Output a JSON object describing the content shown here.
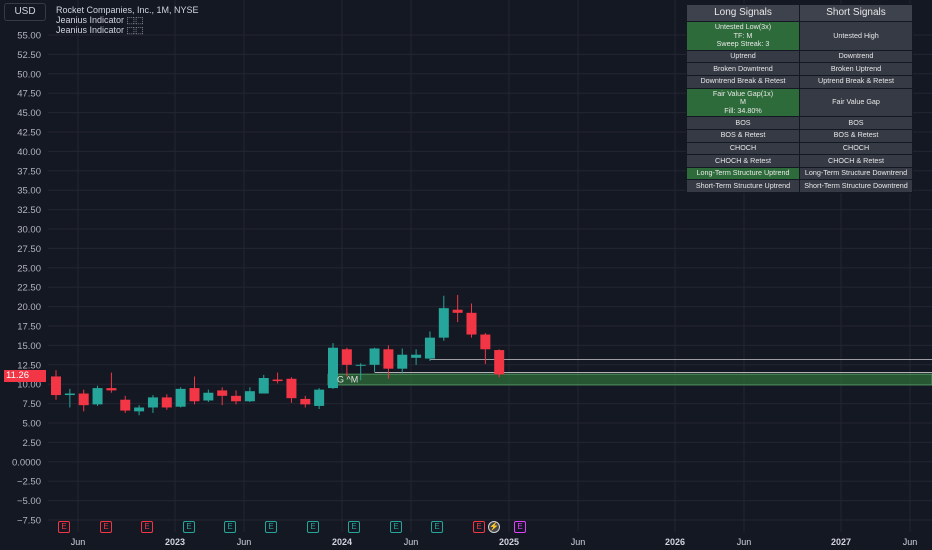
{
  "header": {
    "currency": "USD",
    "symbol_title": "Rocket Companies, Inc., 1M, NYSE",
    "indicators": [
      "Jeanius Indicator ⬚⬚",
      "Jeanius Indicator ⬚⬚"
    ],
    "last_price": "11.26"
  },
  "signals": {
    "long_header": "Long Signals",
    "short_header": "Short Signals",
    "rows": [
      {
        "long": [
          "Untested Low(3x)",
          "TF: M",
          "Sweep Streak: 3"
        ],
        "long_active": true,
        "short": [
          "Untested High"
        ],
        "short_active": false
      },
      {
        "long": [
          "Uptrend"
        ],
        "long_active": false,
        "short": [
          "Downtrend"
        ],
        "short_active": false
      },
      {
        "long": [
          "Broken Downtrend"
        ],
        "long_active": false,
        "short": [
          "Broken Uptrend"
        ],
        "short_active": false
      },
      {
        "long": [
          "Downtrend Break & Retest"
        ],
        "long_active": false,
        "short": [
          "Uptrend Break & Retest"
        ],
        "short_active": false
      },
      {
        "long": [
          "Fair Value Gap(1x)",
          "M",
          "Fill: 34.80%"
        ],
        "long_active": true,
        "short": [
          "Fair Value Gap"
        ],
        "short_active": false
      },
      {
        "long": [
          "BOS"
        ],
        "long_active": false,
        "short": [
          "BOS"
        ],
        "short_active": false
      },
      {
        "long": [
          "BOS & Retest"
        ],
        "long_active": false,
        "short": [
          "BOS & Retest"
        ],
        "short_active": false
      },
      {
        "long": [
          "CHOCH"
        ],
        "long_active": false,
        "short": [
          "CHOCH"
        ],
        "short_active": false
      },
      {
        "long": [
          "CHOCH & Retest"
        ],
        "long_active": false,
        "short": [
          "CHOCH & Retest"
        ],
        "short_active": false
      },
      {
        "long": [
          "Long-Term Structure Uptrend"
        ],
        "long_active": true,
        "short": [
          "Long-Term Structure Downtrend"
        ],
        "short_active": false
      },
      {
        "long": [
          "Short-Term Structure Uptrend"
        ],
        "long_active": false,
        "short": [
          "Short-Term Structure Downtrend"
        ],
        "short_active": false
      }
    ]
  },
  "colors": {
    "up": "#26a69a",
    "down": "#f23645",
    "bg": "#141823",
    "grid": "#232632",
    "zone": "#2e6b3a"
  },
  "chart_data": {
    "type": "candlestick",
    "title": "Rocket Companies, Inc., 1M, NYSE",
    "ylim": [
      -7.5,
      57.5
    ],
    "y_ticks": [
      "55.00",
      "52.50",
      "50.00",
      "47.50",
      "45.00",
      "42.50",
      "40.00",
      "37.50",
      "35.00",
      "32.50",
      "30.00",
      "27.50",
      "25.00",
      "22.50",
      "20.00",
      "17.50",
      "15.00",
      "12.50",
      "10.00",
      "7.50",
      "5.00",
      "2.50",
      "0.0000",
      "−2.50",
      "−5.00",
      "−7.50"
    ],
    "x_ticks": [
      "Jun",
      "2023",
      "Jun",
      "2024",
      "Jun",
      "2025",
      "Jun",
      "2026",
      "Jun",
      "2027",
      "Jun"
    ],
    "x_labels_bold": [
      "2023",
      "2024",
      "2025",
      "2026",
      "2027"
    ],
    "candles": [
      {
        "o": 11.0,
        "h": 11.8,
        "l": 8.0,
        "c": 8.6
      },
      {
        "o": 8.6,
        "h": 9.4,
        "l": 7.0,
        "c": 8.8
      },
      {
        "o": 8.8,
        "h": 9.3,
        "l": 6.5,
        "c": 7.3
      },
      {
        "o": 7.4,
        "h": 9.8,
        "l": 7.2,
        "c": 9.5
      },
      {
        "o": 9.5,
        "h": 11.5,
        "l": 8.9,
        "c": 9.2
      },
      {
        "o": 8.0,
        "h": 8.5,
        "l": 6.3,
        "c": 6.6
      },
      {
        "o": 6.5,
        "h": 7.3,
        "l": 6.0,
        "c": 7.0
      },
      {
        "o": 7.0,
        "h": 8.6,
        "l": 6.3,
        "c": 8.3
      },
      {
        "o": 8.3,
        "h": 8.7,
        "l": 6.7,
        "c": 7.0
      },
      {
        "o": 7.1,
        "h": 9.6,
        "l": 7.0,
        "c": 9.4
      },
      {
        "o": 9.5,
        "h": 11.0,
        "l": 7.4,
        "c": 7.8
      },
      {
        "o": 7.9,
        "h": 9.3,
        "l": 7.7,
        "c": 8.9
      },
      {
        "o": 9.2,
        "h": 9.6,
        "l": 7.3,
        "c": 8.5
      },
      {
        "o": 8.5,
        "h": 9.2,
        "l": 7.4,
        "c": 7.8
      },
      {
        "o": 7.8,
        "h": 9.6,
        "l": 7.7,
        "c": 9.1
      },
      {
        "o": 8.8,
        "h": 11.2,
        "l": 8.8,
        "c": 10.8
      },
      {
        "o": 10.6,
        "h": 11.5,
        "l": 10.1,
        "c": 10.4
      },
      {
        "o": 10.7,
        "h": 10.9,
        "l": 7.6,
        "c": 8.2
      },
      {
        "o": 8.1,
        "h": 8.5,
        "l": 7.0,
        "c": 7.4
      },
      {
        "o": 7.2,
        "h": 9.5,
        "l": 6.8,
        "c": 9.3
      },
      {
        "o": 9.5,
        "h": 15.3,
        "l": 9.4,
        "c": 14.7
      },
      {
        "o": 14.5,
        "h": 14.7,
        "l": 11.0,
        "c": 12.5
      },
      {
        "o": 12.5,
        "h": 12.7,
        "l": 10.5,
        "c": 12.5
      },
      {
        "o": 12.5,
        "h": 14.7,
        "l": 11.6,
        "c": 14.6
      },
      {
        "o": 14.5,
        "h": 15.0,
        "l": 10.7,
        "c": 12.0
      },
      {
        "o": 12.0,
        "h": 14.6,
        "l": 11.4,
        "c": 13.8
      },
      {
        "o": 13.4,
        "h": 14.5,
        "l": 12.5,
        "c": 13.8
      },
      {
        "o": 13.3,
        "h": 16.8,
        "l": 13.0,
        "c": 16.0
      },
      {
        "o": 16.0,
        "h": 21.4,
        "l": 15.6,
        "c": 19.8
      },
      {
        "o": 19.6,
        "h": 21.5,
        "l": 18.0,
        "c": 19.2
      },
      {
        "o": 19.2,
        "h": 20.4,
        "l": 16.0,
        "c": 16.4
      },
      {
        "o": 16.4,
        "h": 16.6,
        "l": 12.6,
        "c": 14.5
      },
      {
        "o": 14.4,
        "h": 14.5,
        "l": 10.9,
        "c": 11.26
      }
    ],
    "zones": [
      {
        "from_candle": 20,
        "y_low": 9.9,
        "y_high": 11.3,
        "color": "#2e6b3a"
      }
    ],
    "levels": [
      {
        "from_candle": 27,
        "y": 13.2
      },
      {
        "from_candle": 23,
        "y": 11.5
      }
    ],
    "zone_labels": [
      "G ^M"
    ],
    "earnings_markers": [
      {
        "label": "E",
        "color": "#f23645"
      },
      {
        "label": "E",
        "color": "#f23645"
      },
      {
        "label": "E",
        "color": "#f23645"
      },
      {
        "label": "E",
        "color": "#26a69a"
      },
      {
        "label": "E",
        "color": "#26a69a"
      },
      {
        "label": "E",
        "color": "#26a69a"
      },
      {
        "label": "E",
        "color": "#26a69a"
      },
      {
        "label": "E",
        "color": "#26a69a"
      },
      {
        "label": "E",
        "color": "#26a69a"
      },
      {
        "label": "E",
        "color": "#26a69a"
      },
      {
        "label": "E",
        "color": "#f23645"
      },
      {
        "label": "⚡",
        "color": "#d1d4dc"
      },
      {
        "label": "E",
        "color": "#e040fb"
      }
    ]
  }
}
